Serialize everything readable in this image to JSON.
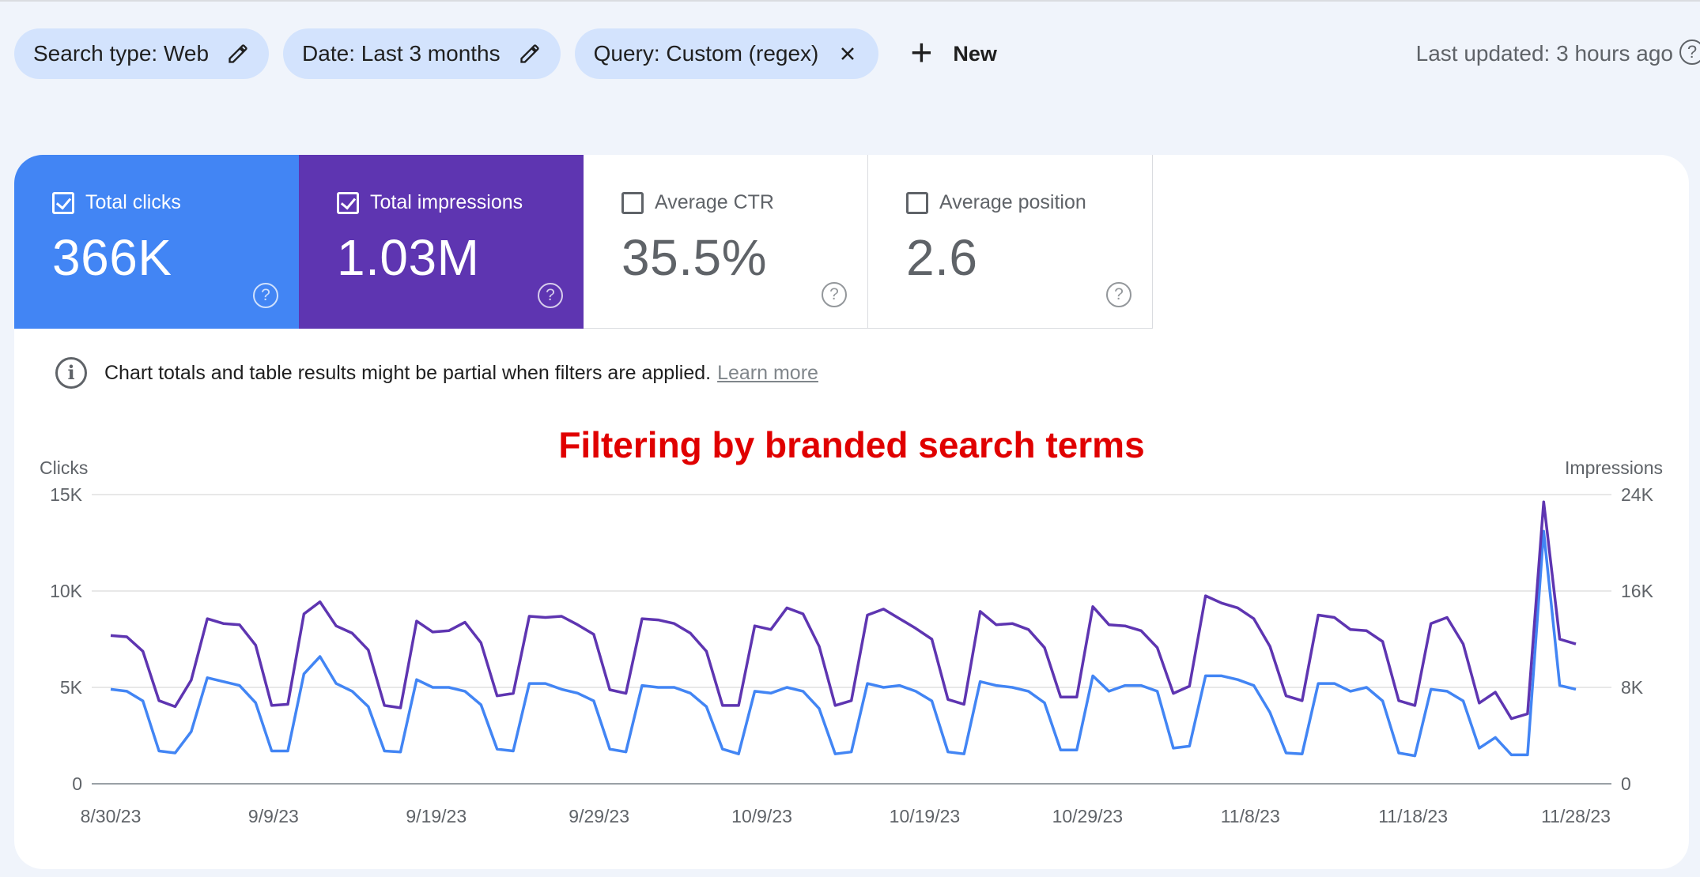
{
  "filters": {
    "chips": [
      {
        "label": "Search type: Web",
        "icon": "pencil-icon"
      },
      {
        "label": "Date: Last 3 months",
        "icon": "pencil-icon"
      },
      {
        "label": "Query: Custom (regex)",
        "icon": "close-icon"
      }
    ],
    "new_label": "New"
  },
  "last_updated": "Last updated: 3 hours ago",
  "metrics": [
    {
      "label": "Total clicks",
      "value": "366K",
      "checked": true,
      "color": "#4285f4"
    },
    {
      "label": "Total impressions",
      "value": "1.03M",
      "checked": true,
      "color": "#5e35b1"
    },
    {
      "label": "Average CTR",
      "value": "35.5%",
      "checked": false
    },
    {
      "label": "Average position",
      "value": "2.6",
      "checked": false
    }
  ],
  "notice": {
    "text": "Chart totals and table results might be partial when filters are applied.",
    "link": "Learn more"
  },
  "annotation": "Filtering by branded search terms",
  "chart_data": {
    "type": "line",
    "x_ticks": [
      "8/30/23",
      "9/9/23",
      "9/19/23",
      "9/29/23",
      "10/9/23",
      "10/19/23",
      "10/29/23",
      "11/8/23",
      "11/18/23",
      "11/28/23"
    ],
    "left_axis": {
      "label": "Clicks",
      "range": [
        0,
        15000
      ],
      "ticks": [
        "0",
        "5K",
        "10K",
        "15K"
      ]
    },
    "right_axis": {
      "label": "Impressions",
      "range": [
        0,
        24000
      ],
      "ticks": [
        "0",
        "8K",
        "16K",
        "24K"
      ]
    },
    "series": [
      {
        "name": "Total clicks",
        "axis": "left",
        "color": "#4285f4",
        "values": [
          4900,
          4800,
          4300,
          1700,
          1600,
          2700,
          5500,
          5300,
          5100,
          4200,
          1700,
          1700,
          5700,
          6600,
          5200,
          4800,
          4000,
          1700,
          1650,
          5400,
          5000,
          5000,
          4800,
          4100,
          1800,
          1700,
          5200,
          5200,
          4900,
          4700,
          4300,
          1800,
          1650,
          5100,
          5000,
          5000,
          4700,
          4000,
          1800,
          1550,
          4800,
          4700,
          5000,
          4800,
          3900,
          1550,
          1650,
          5200,
          5000,
          5100,
          4800,
          4300,
          1650,
          1550,
          5300,
          5100,
          5000,
          4800,
          4200,
          1750,
          1750,
          5600,
          4800,
          5100,
          5100,
          4800,
          1850,
          1950,
          5600,
          5600,
          5400,
          5100,
          3700,
          1600,
          1550,
          5200,
          5200,
          4800,
          5000,
          4300,
          1600,
          1450,
          4900,
          4800,
          4300,
          1850,
          2400,
          1500,
          1500,
          13100,
          5100,
          4900
        ]
      },
      {
        "name": "Total impressions",
        "axis": "right",
        "color": "#5e35b1",
        "values": [
          12300,
          12200,
          11000,
          6900,
          6400,
          8600,
          13700,
          13300,
          13200,
          11500,
          6500,
          6600,
          14100,
          15100,
          13100,
          12500,
          11100,
          6500,
          6300,
          13500,
          12600,
          12700,
          13400,
          11700,
          7300,
          7500,
          13900,
          13800,
          13900,
          13200,
          12400,
          7800,
          7500,
          13700,
          13600,
          13300,
          12500,
          11000,
          6500,
          6500,
          13100,
          12800,
          14600,
          14100,
          11400,
          6500,
          6900,
          14000,
          14500,
          13700,
          12900,
          12000,
          7000,
          6600,
          14300,
          13200,
          13300,
          12800,
          11300,
          7200,
          7200,
          14700,
          13200,
          13100,
          12700,
          11300,
          7500,
          8100,
          15600,
          15000,
          14600,
          13700,
          11400,
          7300,
          6900,
          14000,
          13800,
          12800,
          12700,
          11800,
          6900,
          6500,
          13300,
          13800,
          11600,
          6700,
          7600,
          5400,
          5800,
          23400,
          12000,
          11600
        ]
      }
    ]
  }
}
